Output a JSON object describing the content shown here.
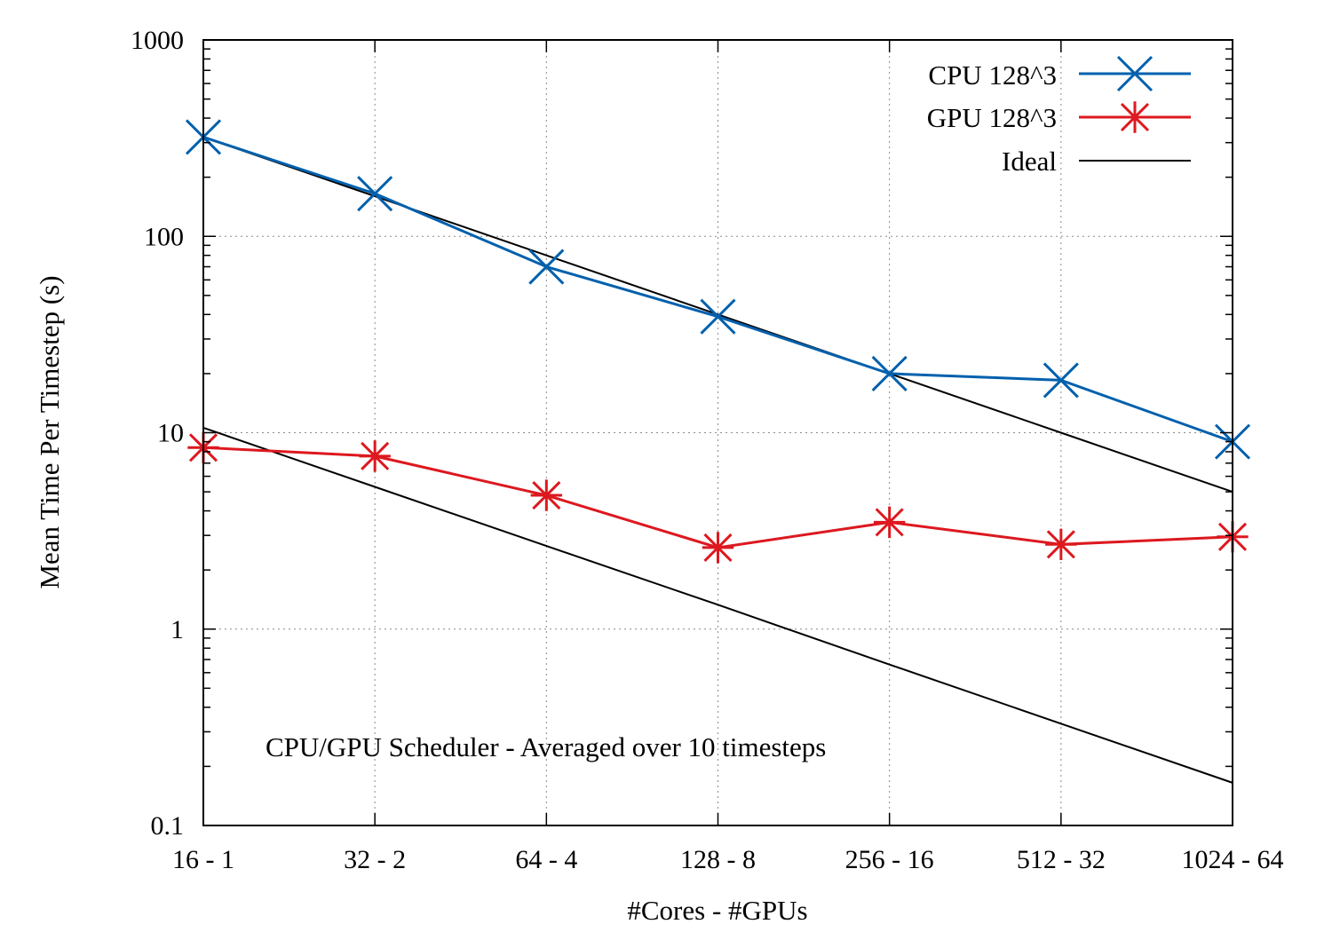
{
  "chart_data": {
    "type": "line",
    "categories": [
      "16 - 1",
      "32 - 2",
      "64 - 4",
      "128 - 8",
      "256 - 16",
      "512 - 32",
      "1024 - 64"
    ],
    "xlabel": "#Cores - #GPUs",
    "ylabel": "Mean Time Per Timestep (s)",
    "yscale": "log",
    "ylim": [
      0.1,
      1000
    ],
    "yticks": [
      {
        "value": 0.1,
        "label": "0.1"
      },
      {
        "value": 1,
        "label": "1"
      },
      {
        "value": 10,
        "label": "10"
      },
      {
        "value": 100,
        "label": "100"
      },
      {
        "value": 1000,
        "label": "1000"
      }
    ],
    "grid": true,
    "legend_position": "top-right",
    "annotation": "CPU/GPU Scheduler - Averaged over 10 timesteps",
    "series": [
      {
        "name": "CPU 128^3",
        "color": "#0060ad",
        "marker": "x",
        "values": [
          320,
          165,
          70,
          39,
          20,
          18.5,
          9
        ]
      },
      {
        "name": "GPU 128^3",
        "color": "#dd181f",
        "marker": "asterisk",
        "values": [
          8.4,
          7.6,
          4.8,
          2.6,
          3.5,
          2.7,
          2.95
        ]
      }
    ],
    "ideal": {
      "name": "Ideal",
      "color": "#000000",
      "lines": [
        {
          "values": [
            320,
            160,
            80,
            40,
            20,
            10,
            5
          ]
        },
        {
          "values": [
            10.6,
            5.3,
            2.65,
            1.33,
            0.66,
            0.33,
            0.165
          ]
        }
      ]
    }
  }
}
